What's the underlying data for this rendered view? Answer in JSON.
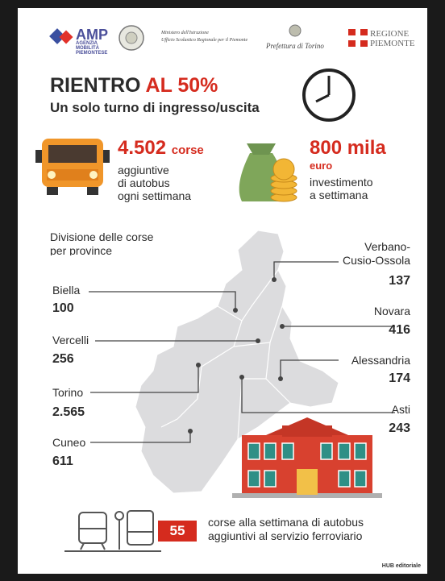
{
  "logos": {
    "amp": "AMP",
    "amp_sub": [
      "AGENZIA",
      "MOBILITÀ",
      "PIEMONTESE"
    ],
    "ministero": [
      "Ministero dell'Istruzione",
      "Ufficio Scolastico Regionale per il Piemonte"
    ],
    "prefettura": "Prefettura di Torino",
    "regione": [
      "REGIONE",
      "PIEMONTE"
    ]
  },
  "header": {
    "title": "RIENTRO",
    "title_highlight": "AL 50%",
    "subtitle": "Un solo turno di ingresso/uscita"
  },
  "stats": [
    {
      "value": "4.502",
      "unit": "corse",
      "lines": [
        "aggiuntive",
        "di autobus",
        "ogni settimana"
      ]
    },
    {
      "value": "800 mila",
      "unit": "euro",
      "lines": [
        "investimento",
        "a settimana"
      ]
    }
  ],
  "map": {
    "heading": [
      "Divisione delle corse",
      "per province"
    ],
    "provinces": [
      {
        "name": "Biella",
        "value": "100"
      },
      {
        "name": "Vercelli",
        "value": "256"
      },
      {
        "name": "Torino",
        "value": "2.565"
      },
      {
        "name": "Cuneo",
        "value": "611"
      },
      {
        "name": "Verbano-\nCusio-Ossola",
        "value": "137"
      },
      {
        "name": "Novara",
        "value": "416"
      },
      {
        "name": "Alessandria",
        "value": "174"
      },
      {
        "name": "Asti",
        "value": "243"
      }
    ]
  },
  "footer": {
    "value": "55",
    "lines": [
      "corse alla settimana di autobus",
      "aggiuntivi al servizio ferroviario"
    ],
    "credit": "HUB editoriale"
  }
}
